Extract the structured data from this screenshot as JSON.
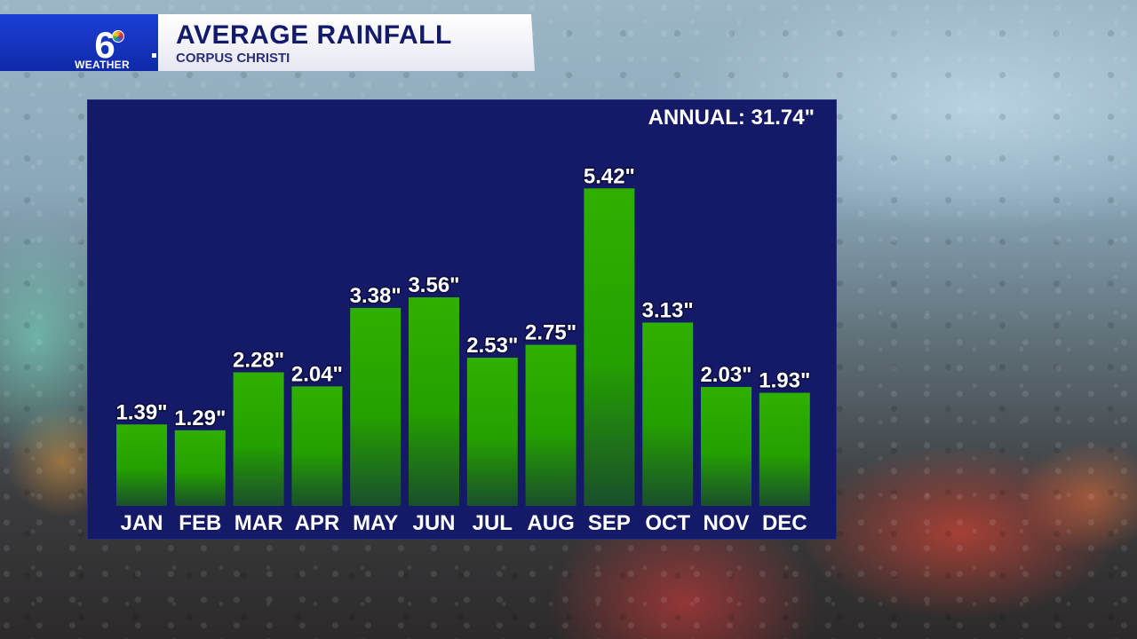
{
  "header": {
    "logo_number": "6",
    "logo_word": "WEATHER",
    "title": "AVERAGE RAINFALL",
    "subtitle": "CORPUS CHRISTI"
  },
  "annual_label": "ANNUAL: 31.74\"",
  "colors": {
    "panel": "#141a67",
    "bar_top": "#2fb000",
    "bar_bottom": "#1a4f2c",
    "banner_blue": "#1b3fd6",
    "title_text": "#131a6a"
  },
  "chart_data": {
    "type": "bar",
    "title": "AVERAGE RAINFALL",
    "subtitle": "CORPUS CHRISTI",
    "categories": [
      "JAN",
      "FEB",
      "MAR",
      "APR",
      "MAY",
      "JUN",
      "JUL",
      "AUG",
      "SEP",
      "OCT",
      "NOV",
      "DEC"
    ],
    "values": [
      1.39,
      1.29,
      2.28,
      2.04,
      3.38,
      3.56,
      2.53,
      2.75,
      5.42,
      3.13,
      2.03,
      1.93
    ],
    "value_labels": [
      "1.39\"",
      "1.29\"",
      "2.28\"",
      "2.04\"",
      "3.38\"",
      "3.56\"",
      "2.53\"",
      "2.75\"",
      "5.42\"",
      "3.13\"",
      "2.03\"",
      "1.93\""
    ],
    "annual_total": 31.74,
    "unit": "inches",
    "xlabel": "",
    "ylabel": "",
    "ylim": [
      0,
      6
    ],
    "grid": false,
    "legend": "none"
  }
}
